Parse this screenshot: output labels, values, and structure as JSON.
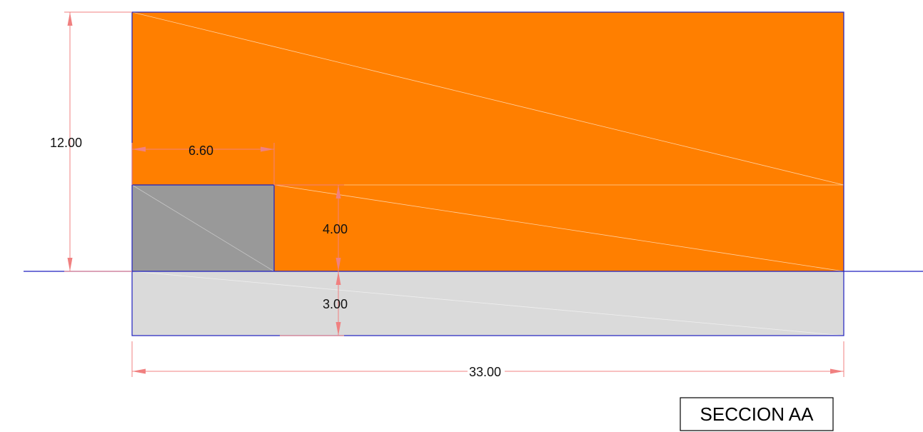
{
  "dimensions": {
    "total_height": "12.00",
    "gray_block_width": "6.60",
    "upper_height": "4.00",
    "lower_depth": "3.00",
    "total_width": "33.00"
  },
  "title": "SECCION AA",
  "colors": {
    "orange_fill": "#ff7f00",
    "gray_block": "#999999",
    "light_gray": "#dadada",
    "outline": "#1f1fbf",
    "dimension": "#f08080"
  }
}
